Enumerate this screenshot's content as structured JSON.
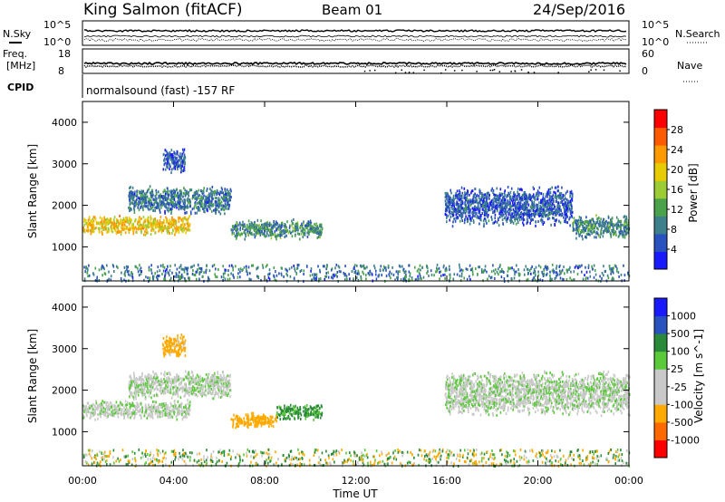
{
  "header": {
    "station": "King Salmon (fitACF)",
    "beam": "Beam 01",
    "date": "24/Sep/2016"
  },
  "top_panels": {
    "nsky_label": "N.Sky",
    "nsearch_label": "N.Search",
    "noise_ticks": [
      "10^5",
      "10^0"
    ],
    "freq_label_1": "Freq.",
    "freq_label_2": "[MHz]",
    "freq_ticks": [
      "18",
      "8"
    ],
    "nave_label": "Nave",
    "nave_ticks": [
      "60",
      "0"
    ],
    "cpid_label": "CPID",
    "cpid_text": "normalsound (fast) -157 RF"
  },
  "colors": {
    "power_scale": [
      "#1a1aff",
      "#2a52be",
      "#3e7f8c",
      "#4aa24a",
      "#9ccc33",
      "#e6cc00",
      "#ff9900",
      "#ff5a00",
      "#ff0000"
    ],
    "velocity_scale": [
      "#ff0000",
      "#ff6a00",
      "#ffaa00",
      "#c9c9c9",
      "#c9c9c9",
      "#5ac93a",
      "#2a8a3a",
      "#2a52be",
      "#1a1aff"
    ]
  },
  "chart_data": [
    {
      "type": "heatmap",
      "title": "Power",
      "ylabel": "Slant Range [km]",
      "xlabel": "",
      "ylim": [
        180,
        4500
      ],
      "xlim": [
        0,
        24
      ],
      "yticks": [
        "1000",
        "2000",
        "3000",
        "4000"
      ],
      "xticks": [
        "00:00",
        "04:00",
        "08:00",
        "12:00",
        "16:00",
        "20:00",
        "00:00"
      ],
      "colorbar_label": "Power [dB]",
      "colorbar_ticks": [
        "4",
        "8",
        "12",
        "16",
        "20",
        "24",
        "28"
      ],
      "colorbar_range": [
        0,
        32
      ],
      "scatter_regions": [
        {
          "t": [
            0,
            4.7
          ],
          "r": [
            1300,
            1800
          ],
          "value": 20
        },
        {
          "t": [
            2.0,
            6.5
          ],
          "r": [
            1800,
            2500
          ],
          "value": 8
        },
        {
          "t": [
            3.5,
            4.5
          ],
          "r": [
            2800,
            3400
          ],
          "value": 6
        },
        {
          "t": [
            6.5,
            10.5
          ],
          "r": [
            1200,
            1700
          ],
          "value": 10
        },
        {
          "t": [
            15.9,
            21.5
          ],
          "r": [
            1500,
            2500
          ],
          "value": 6
        },
        {
          "t": [
            21.5,
            24
          ],
          "r": [
            1200,
            1800
          ],
          "value": 10
        },
        {
          "t": [
            0,
            24
          ],
          "r": [
            200,
            600
          ],
          "value": 8
        }
      ]
    },
    {
      "type": "heatmap",
      "title": "Velocity",
      "ylabel": "Slant Range [km]",
      "xlabel": "Time UT",
      "ylim": [
        180,
        4500
      ],
      "xlim": [
        0,
        24
      ],
      "yticks": [
        "1000",
        "2000",
        "3000",
        "4000"
      ],
      "xticks": [
        "00:00",
        "04:00",
        "08:00",
        "12:00",
        "16:00",
        "20:00",
        "00:00"
      ],
      "colorbar_label": "Velocity [m s^-1]",
      "colorbar_ticks": [
        "1000",
        "500",
        "100",
        "25",
        "-25",
        "-100",
        "-500",
        "-1000"
      ],
      "scatter_regions": [
        {
          "t": [
            0,
            4.7
          ],
          "r": [
            1300,
            1800
          ],
          "value": 0
        },
        {
          "t": [
            2.0,
            6.5
          ],
          "r": [
            1800,
            2500
          ],
          "value": 0
        },
        {
          "t": [
            3.5,
            4.5
          ],
          "r": [
            2800,
            3400
          ],
          "value": -150
        },
        {
          "t": [
            6.5,
            8.5
          ],
          "r": [
            1100,
            1500
          ],
          "value": -300
        },
        {
          "t": [
            8.5,
            10.5
          ],
          "r": [
            1300,
            1700
          ],
          "value": 120
        },
        {
          "t": [
            15.9,
            24
          ],
          "r": [
            1400,
            2500
          ],
          "value": 0
        },
        {
          "t": [
            0,
            24
          ],
          "r": [
            200,
            600
          ],
          "value": 0
        }
      ]
    }
  ]
}
